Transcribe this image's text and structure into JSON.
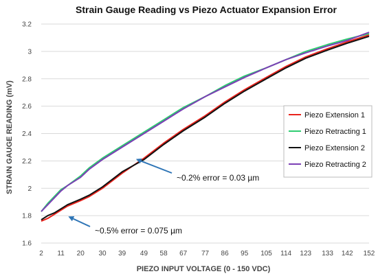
{
  "chart_data": {
    "type": "line",
    "title": "Strain Gauge Reading vs Piezo Actuator Expansion Error",
    "xlabel": "PIEZO INPUT VOLTAGE  (0 - 150 VDC)",
    "ylabel": "STRAIN GAUGE READING  (mV)",
    "x_ticks": [
      "2",
      "11",
      "20",
      "30",
      "39",
      "49",
      "58",
      "67",
      "77",
      "86",
      "95",
      "105",
      "114",
      "123",
      "133",
      "142",
      "152"
    ],
    "xlim": [
      2,
      152
    ],
    "ylim": [
      1.6,
      3.2
    ],
    "y_ticks": [
      "1.6",
      "1.8",
      "2",
      "2.2",
      "2.4",
      "2.6",
      "2.8",
      "3",
      "3.2"
    ],
    "grid": "horizontal",
    "legend": "right",
    "x": [
      2,
      5,
      8,
      11,
      14,
      20,
      24,
      30,
      39,
      49,
      58,
      67,
      77,
      86,
      95,
      105,
      114,
      123,
      133,
      142,
      152
    ],
    "series": [
      {
        "name": "Piezo Extension  1",
        "color": "#e8221b",
        "values": [
          1.76,
          1.78,
          1.81,
          1.84,
          1.87,
          1.91,
          1.94,
          2.0,
          2.11,
          2.22,
          2.33,
          2.43,
          2.53,
          2.63,
          2.72,
          2.81,
          2.89,
          2.96,
          3.02,
          3.07,
          3.12
        ]
      },
      {
        "name": "Piezo Retracting 1",
        "color": "#2ecc71",
        "values": [
          1.83,
          1.89,
          1.94,
          1.99,
          2.02,
          2.09,
          2.15,
          2.22,
          2.31,
          2.41,
          2.5,
          2.59,
          2.67,
          2.75,
          2.82,
          2.88,
          2.94,
          3.0,
          3.05,
          3.09,
          3.13
        ]
      },
      {
        "name": "Piezo Extension  2",
        "color": "#111111",
        "values": [
          1.77,
          1.8,
          1.82,
          1.85,
          1.88,
          1.92,
          1.95,
          2.01,
          2.12,
          2.21,
          2.32,
          2.42,
          2.52,
          2.62,
          2.71,
          2.8,
          2.88,
          2.95,
          3.01,
          3.06,
          3.11
        ]
      },
      {
        "name": "Piezo Retracting 2",
        "color": "#7b3fb5",
        "values": [
          1.83,
          1.88,
          1.93,
          1.98,
          2.02,
          2.08,
          2.14,
          2.21,
          2.3,
          2.4,
          2.49,
          2.58,
          2.67,
          2.74,
          2.81,
          2.88,
          2.94,
          2.99,
          3.04,
          3.08,
          3.14
        ]
      }
    ],
    "annotations": [
      {
        "text": "~0.2% error = 0.03 µm",
        "point": [
          45,
          2.22
        ],
        "color": "#2e75b6"
      },
      {
        "text": "~0.5% error = 0.075 µm",
        "point": [
          14,
          1.8
        ],
        "color": "#2e75b6"
      }
    ]
  }
}
